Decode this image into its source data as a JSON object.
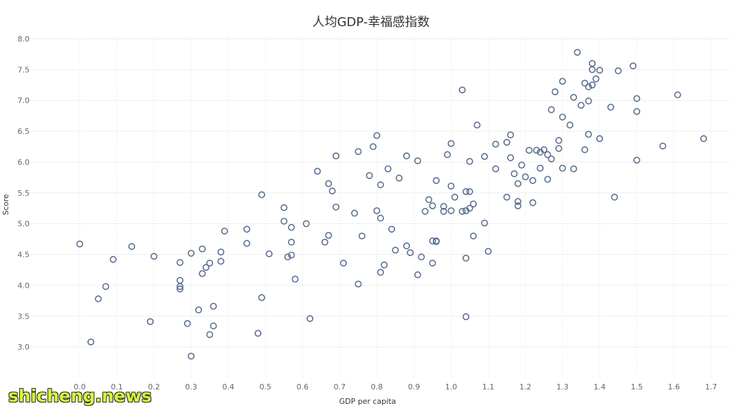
{
  "chart_data": {
    "type": "scatter",
    "title": "人均GDP-幸福感指数",
    "xlabel": "GDP per capita",
    "ylabel": "Score",
    "xlim": [
      -0.1,
      1.75
    ],
    "ylim": [
      2.5,
      8.05
    ],
    "xticks": [
      "0.0",
      "0.1",
      "0.2",
      "0.3",
      "0.4",
      "0.5",
      "0.6",
      "0.7",
      "0.8",
      "0.9",
      "1.0",
      "1.1",
      "1.2",
      "1.3",
      "1.4",
      "1.5",
      "1.6",
      "1.7"
    ],
    "yticks": [
      "3.0",
      "3.5",
      "4.0",
      "4.5",
      "5.0",
      "5.5",
      "6.0",
      "6.5",
      "7.0",
      "7.5",
      "8.0"
    ],
    "grid": true,
    "marker": "hollow-circle",
    "color": "#5a6f8e",
    "points": [
      [
        0.0,
        4.67
      ],
      [
        0.03,
        3.08
      ],
      [
        0.05,
        3.78
      ],
      [
        0.07,
        3.98
      ],
      [
        0.09,
        4.42
      ],
      [
        0.14,
        4.63
      ],
      [
        0.19,
        3.41
      ],
      [
        0.2,
        4.47
      ],
      [
        0.27,
        4.37
      ],
      [
        0.27,
        4.08
      ],
      [
        0.27,
        3.98
      ],
      [
        0.27,
        3.94
      ],
      [
        0.29,
        3.38
      ],
      [
        0.3,
        4.52
      ],
      [
        0.3,
        2.85
      ],
      [
        0.32,
        3.6
      ],
      [
        0.33,
        4.59
      ],
      [
        0.33,
        4.19
      ],
      [
        0.34,
        4.29
      ],
      [
        0.35,
        4.36
      ],
      [
        0.35,
        3.2
      ],
      [
        0.36,
        3.34
      ],
      [
        0.36,
        3.66
      ],
      [
        0.38,
        4.54
      ],
      [
        0.38,
        4.39
      ],
      [
        0.39,
        4.88
      ],
      [
        0.45,
        4.91
      ],
      [
        0.45,
        4.68
      ],
      [
        0.48,
        3.22
      ],
      [
        0.49,
        3.8
      ],
      [
        0.49,
        5.47
      ],
      [
        0.51,
        4.51
      ],
      [
        0.55,
        5.04
      ],
      [
        0.55,
        5.26
      ],
      [
        0.56,
        4.46
      ],
      [
        0.57,
        4.94
      ],
      [
        0.57,
        4.49
      ],
      [
        0.57,
        4.7
      ],
      [
        0.58,
        4.1
      ],
      [
        0.61,
        5.0
      ],
      [
        0.62,
        3.46
      ],
      [
        0.64,
        5.85
      ],
      [
        0.66,
        4.7
      ],
      [
        0.67,
        4.81
      ],
      [
        0.67,
        5.65
      ],
      [
        0.68,
        5.53
      ],
      [
        0.69,
        6.1
      ],
      [
        0.69,
        5.27
      ],
      [
        0.71,
        4.36
      ],
      [
        0.74,
        5.17
      ],
      [
        0.75,
        6.17
      ],
      [
        0.75,
        4.02
      ],
      [
        0.76,
        4.8
      ],
      [
        0.78,
        5.78
      ],
      [
        0.79,
        6.25
      ],
      [
        0.8,
        6.43
      ],
      [
        0.8,
        5.21
      ],
      [
        0.81,
        5.63
      ],
      [
        0.81,
        5.09
      ],
      [
        0.81,
        4.21
      ],
      [
        0.82,
        4.33
      ],
      [
        0.83,
        5.89
      ],
      [
        0.84,
        4.91
      ],
      [
        0.85,
        4.57
      ],
      [
        0.86,
        5.74
      ],
      [
        0.88,
        4.64
      ],
      [
        0.88,
        6.1
      ],
      [
        0.89,
        4.53
      ],
      [
        0.91,
        4.17
      ],
      [
        0.91,
        6.02
      ],
      [
        0.92,
        4.46
      ],
      [
        0.93,
        5.2
      ],
      [
        0.94,
        5.39
      ],
      [
        0.95,
        5.29
      ],
      [
        0.95,
        4.72
      ],
      [
        0.95,
        4.36
      ],
      [
        0.96,
        4.72
      ],
      [
        0.96,
        4.71
      ],
      [
        0.96,
        5.7
      ],
      [
        0.98,
        5.28
      ],
      [
        0.98,
        5.2
      ],
      [
        0.99,
        6.12
      ],
      [
        1.0,
        5.61
      ],
      [
        1.0,
        5.21
      ],
      [
        1.0,
        6.3
      ],
      [
        1.01,
        5.43
      ],
      [
        1.03,
        5.2
      ],
      [
        1.03,
        7.17
      ],
      [
        1.04,
        5.52
      ],
      [
        1.04,
        4.44
      ],
      [
        1.04,
        3.49
      ],
      [
        1.04,
        5.21
      ],
      [
        1.05,
        5.52
      ],
      [
        1.05,
        6.01
      ],
      [
        1.05,
        5.25
      ],
      [
        1.06,
        4.8
      ],
      [
        1.06,
        5.32
      ],
      [
        1.07,
        6.6
      ],
      [
        1.09,
        6.09
      ],
      [
        1.09,
        5.01
      ],
      [
        1.1,
        4.55
      ],
      [
        1.12,
        5.89
      ],
      [
        1.12,
        6.29
      ],
      [
        1.15,
        6.32
      ],
      [
        1.15,
        5.43
      ],
      [
        1.16,
        6.44
      ],
      [
        1.16,
        6.07
      ],
      [
        1.17,
        5.81
      ],
      [
        1.18,
        5.29
      ],
      [
        1.18,
        5.36
      ],
      [
        1.18,
        5.65
      ],
      [
        1.19,
        5.95
      ],
      [
        1.2,
        5.76
      ],
      [
        1.21,
        6.19
      ],
      [
        1.22,
        5.7
      ],
      [
        1.22,
        5.34
      ],
      [
        1.23,
        6.19
      ],
      [
        1.24,
        5.9
      ],
      [
        1.24,
        6.16
      ],
      [
        1.25,
        6.2
      ],
      [
        1.26,
        6.12
      ],
      [
        1.26,
        5.72
      ],
      [
        1.27,
        6.05
      ],
      [
        1.27,
        6.85
      ],
      [
        1.28,
        7.14
      ],
      [
        1.29,
        6.35
      ],
      [
        1.29,
        6.22
      ],
      [
        1.3,
        7.31
      ],
      [
        1.3,
        6.73
      ],
      [
        1.3,
        5.9
      ],
      [
        1.32,
        6.6
      ],
      [
        1.33,
        5.89
      ],
      [
        1.33,
        7.05
      ],
      [
        1.34,
        7.78
      ],
      [
        1.35,
        6.92
      ],
      [
        1.36,
        6.2
      ],
      [
        1.36,
        7.28
      ],
      [
        1.37,
        6.45
      ],
      [
        1.37,
        7.22
      ],
      [
        1.37,
        6.99
      ],
      [
        1.38,
        7.25
      ],
      [
        1.38,
        7.5
      ],
      [
        1.38,
        7.6
      ],
      [
        1.39,
        7.35
      ],
      [
        1.4,
        7.49
      ],
      [
        1.4,
        6.38
      ],
      [
        1.43,
        6.89
      ],
      [
        1.44,
        5.43
      ],
      [
        1.45,
        7.48
      ],
      [
        1.49,
        7.56
      ],
      [
        1.5,
        7.03
      ],
      [
        1.5,
        6.03
      ],
      [
        1.5,
        6.82
      ],
      [
        1.57,
        6.26
      ],
      [
        1.61,
        7.09
      ],
      [
        1.68,
        6.38
      ]
    ]
  },
  "watermark": "shicheng.news"
}
